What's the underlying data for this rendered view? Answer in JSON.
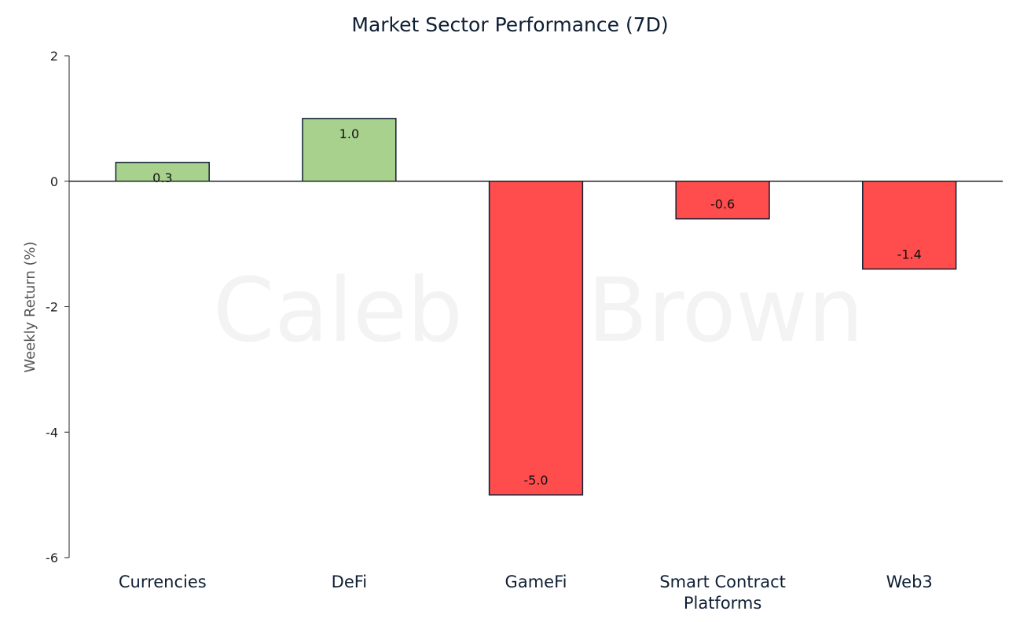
{
  "chart_data": {
    "type": "bar",
    "title": "Market Sector Performance (7D)",
    "xlabel": "",
    "ylabel": "Weekly  Return (%)",
    "ylim": [
      -6,
      2
    ],
    "yticks": [
      2,
      0,
      -2,
      -4,
      -6
    ],
    "grid": false,
    "legend": "none",
    "watermark": "Caleb & Brown",
    "categories": [
      "Currencies",
      "DeFi",
      "GameFi",
      "Smart Contract Platforms",
      "Web3"
    ],
    "category_lines": [
      [
        "Currencies"
      ],
      [
        "DeFi"
      ],
      [
        "GameFi"
      ],
      [
        "Smart Contract",
        "Platforms"
      ],
      [
        "Web3"
      ]
    ],
    "values": [
      0.3,
      1.0,
      -5.0,
      -0.6,
      -1.4
    ],
    "value_labels": [
      "0.3",
      "1.0",
      "-5.0",
      "-0.6",
      "-1.4"
    ],
    "colors": {
      "positive": "#a9d18e",
      "negative": "#ff4c4c",
      "bar_edge": "#0e1e33",
      "axis": "#222222"
    }
  }
}
